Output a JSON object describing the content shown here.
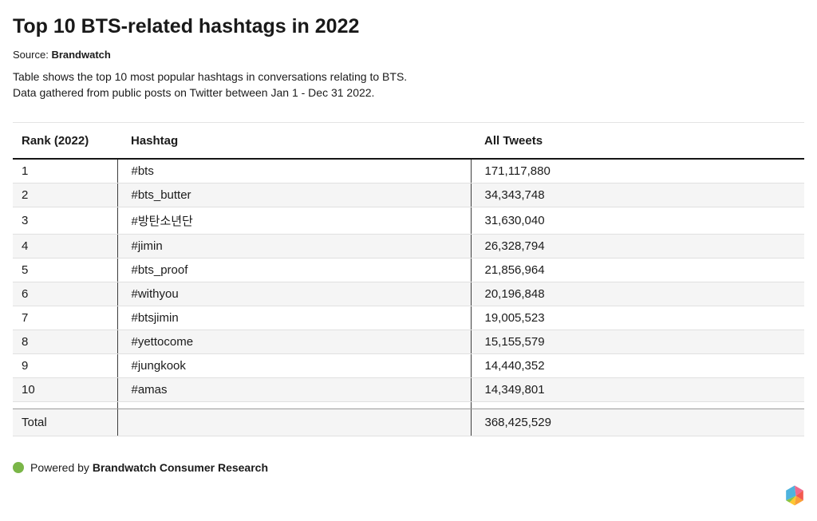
{
  "header": {
    "title": "Top 10 BTS-related hashtags in 2022",
    "source_label": "Source:",
    "source_value": "Brandwatch",
    "description_line1": "Table shows the top 10 most popular hashtags in conversations relating to BTS.",
    "description_line2": "Data gathered from public posts on Twitter between Jan 1 - Dec 31 2022."
  },
  "table": {
    "columns": [
      "Rank (2022)",
      "Hashtag",
      "All Tweets"
    ],
    "rows": [
      {
        "rank": "1",
        "hashtag": "#bts",
        "tweets": "171,117,880"
      },
      {
        "rank": "2",
        "hashtag": "#bts_butter",
        "tweets": "34,343,748"
      },
      {
        "rank": "3",
        "hashtag": "#방탄소년단",
        "tweets": "31,630,040"
      },
      {
        "rank": "4",
        "hashtag": "#jimin",
        "tweets": "26,328,794"
      },
      {
        "rank": "5",
        "hashtag": "#bts_proof",
        "tweets": "21,856,964"
      },
      {
        "rank": "6",
        "hashtag": "#withyou",
        "tweets": "20,196,848"
      },
      {
        "rank": "7",
        "hashtag": "#btsjimin",
        "tweets": "19,005,523"
      },
      {
        "rank": "8",
        "hashtag": "#yettocome",
        "tweets": "15,155,579"
      },
      {
        "rank": "9",
        "hashtag": "#jungkook",
        "tweets": "14,440,352"
      },
      {
        "rank": "10",
        "hashtag": "#amas",
        "tweets": "14,349,801"
      }
    ],
    "total_label": "Total",
    "total_value": "368,425,529"
  },
  "footer": {
    "powered_by_label": "Powered by",
    "brand_name": "Brandwatch Consumer Research",
    "dot_color": "#7ab648",
    "logo_colors": {
      "blue": "#4eb3de",
      "pink": "#ef6a8e",
      "red": "#f3594f",
      "orange": "#f99f38",
      "yellow": "#fdc831",
      "green": "#8ac440"
    }
  },
  "chart_data": {
    "type": "table",
    "title": "Top 10 BTS-related hashtags in 2022",
    "source": "Brandwatch",
    "columns": [
      "Rank (2022)",
      "Hashtag",
      "All Tweets"
    ],
    "rows": [
      [
        1,
        "#bts",
        171117880
      ],
      [
        2,
        "#bts_butter",
        34343748
      ],
      [
        3,
        "#방탄소년단",
        31630040
      ],
      [
        4,
        "#jimin",
        26328794
      ],
      [
        5,
        "#bts_proof",
        21856964
      ],
      [
        6,
        "#withyou",
        20196848
      ],
      [
        7,
        "#btsjimin",
        19005523
      ],
      [
        8,
        "#yettocome",
        15155579
      ],
      [
        9,
        "#jungkook",
        14440352
      ],
      [
        10,
        "#amas",
        14349801
      ]
    ],
    "total": 368425529,
    "layout_hints": {
      "zebra_striping": true,
      "header_rule": "2px solid black",
      "column_dividers": "dark vertical lines between columns"
    }
  }
}
